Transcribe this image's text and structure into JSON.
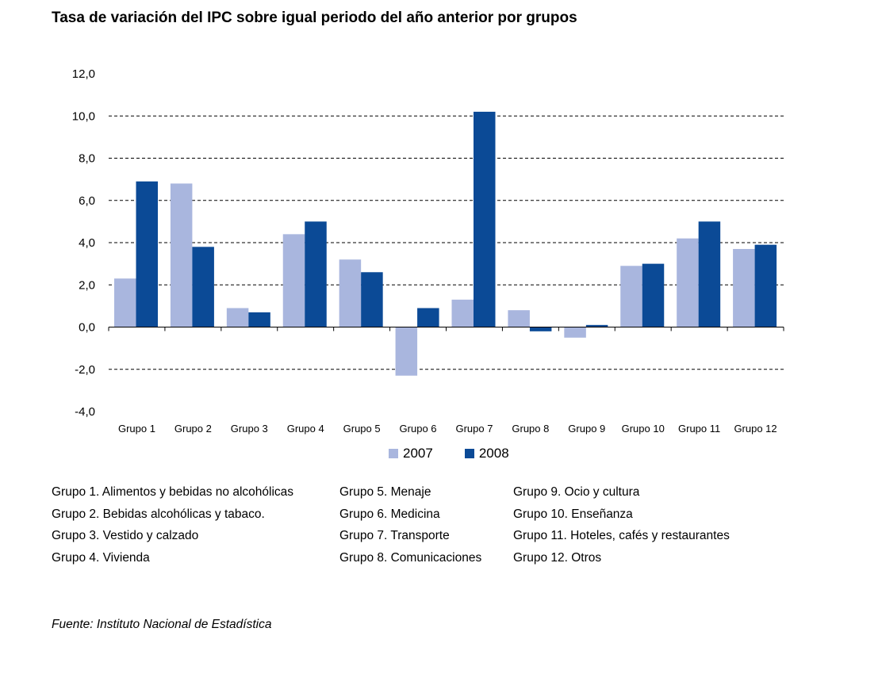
{
  "chart_data": {
    "type": "bar",
    "title": "Tasa de variación del IPC sobre igual periodo del año anterior por grupos",
    "categories": [
      "Grupo 1",
      "Grupo 2",
      "Grupo 3",
      "Grupo 4",
      "Grupo 5",
      "Grupo 6",
      "Grupo 7",
      "Grupo 8",
      "Grupo 9",
      "Grupo 10",
      "Grupo 11",
      "Grupo 12"
    ],
    "series": [
      {
        "name": "2007",
        "color": "#A9B6DE",
        "values": [
          2.3,
          6.8,
          0.9,
          4.4,
          3.2,
          -2.3,
          1.3,
          0.8,
          -0.5,
          2.9,
          4.2,
          3.7
        ]
      },
      {
        "name": "2008",
        "color": "#0B4A96",
        "values": [
          6.9,
          3.8,
          0.7,
          5.0,
          2.6,
          0.9,
          10.2,
          -0.2,
          0.1,
          3.0,
          5.0,
          3.9
        ]
      }
    ],
    "ylim": [
      -4,
      12
    ],
    "yticks": [
      "12,0",
      "10,0",
      "8,0",
      "6,0",
      "4,0",
      "2,0",
      "0,0",
      "-2,0",
      "-4,0"
    ],
    "ytick_values": [
      12,
      10,
      8,
      6,
      4,
      2,
      0,
      -2,
      -4
    ],
    "grid": "dashed horizontal",
    "legend": "bottom"
  },
  "footnotes": [
    "Grupo 1. Alimentos y bebidas no alcohólicas",
    "Grupo 5. Menaje",
    "Grupo 9. Ocio y cultura",
    "Grupo 2. Bebidas alcohólicas y  tabaco.",
    "Grupo 6. Medicina",
    "Grupo 10. Enseñanza",
    "Grupo 3. Vestido y calzado",
    "Grupo 7. Transporte",
    "Grupo 11. Hoteles, cafés y restaurantes",
    "Grupo 4. Vivienda",
    "Grupo 8. Comunicaciones",
    "Grupo 12. Otros"
  ],
  "source": "Fuente: Instituto Nacional de Estadística"
}
